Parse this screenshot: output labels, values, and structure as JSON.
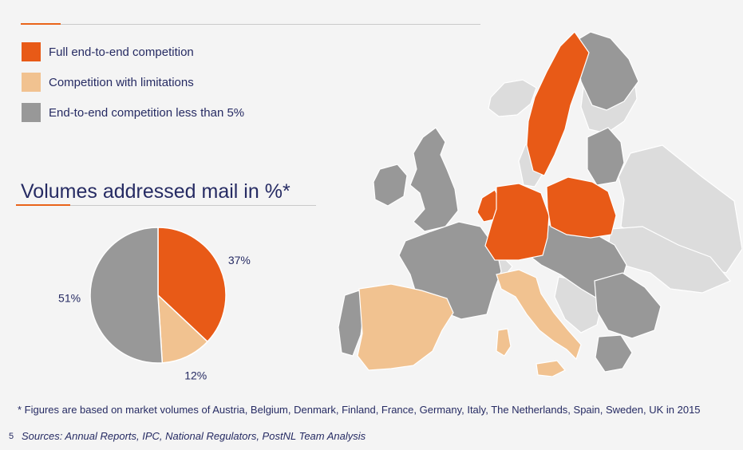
{
  "colors": {
    "full": "#e85a17",
    "limited": "#f1c290",
    "under5": "#989898",
    "other": "#dcdcdc",
    "accent": "#e9641a",
    "text": "#262b63"
  },
  "legend": [
    {
      "label": "Full end-to-end competition",
      "color": "#e85a17"
    },
    {
      "label": "Competition with limitations",
      "color": "#f1c290"
    },
    {
      "label": "End-to-end competition less than 5%",
      "color": "#989898"
    }
  ],
  "section_title": "Volumes addressed mail in %*",
  "chart_data": {
    "type": "pie",
    "title": "Volumes addressed mail in %*",
    "slices": [
      {
        "label": "37%",
        "value": 37,
        "color": "#e85a17"
      },
      {
        "label": "12%",
        "value": 12,
        "color": "#f1c290"
      },
      {
        "label": "51%",
        "value": 51,
        "color": "#989898"
      }
    ]
  },
  "footnote": "* Figures are based on market volumes of Austria, Belgium, Denmark, Finland, France, Germany, Italy, The Netherlands, Spain, Sweden, UK in 2015",
  "page_number": "5",
  "sources": "Sources: Annual Reports, IPC, National Regulators, PostNL Team Analysis"
}
